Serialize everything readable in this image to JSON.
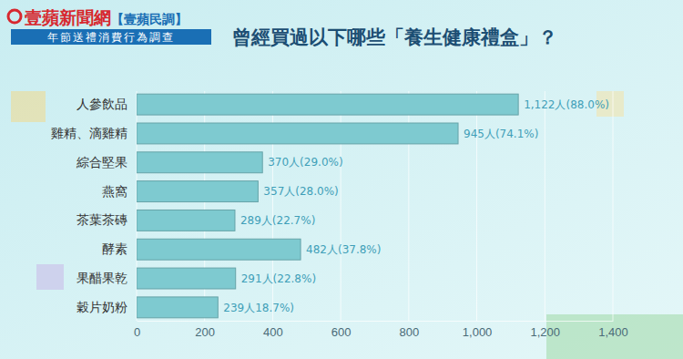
{
  "chart_data": {
    "type": "bar",
    "orientation": "horizontal",
    "title": "曾經買過以下哪些「養生健康禮盒」？",
    "subtitle": "年節送禮消費行為調查",
    "annotations": [
      "壹蘋新聞網",
      "【壹蘋民調】"
    ],
    "categories": [
      "人參飲品",
      "雞精、滴雞精",
      "綜合堅果",
      "燕窩",
      "茶葉茶磚",
      "酵素",
      "果醋果乾",
      "穀片奶粉"
    ],
    "values": [
      1122,
      945,
      370,
      357,
      289,
      482,
      291,
      239
    ],
    "value_labels": [
      "1,122人(88.0%)",
      "945人(74.1%)",
      "370人(29.0%)",
      "357人(28.0%)",
      "289人(22.7%)",
      "482人(37.8%)",
      "291人(22.8%)",
      "239人18.7%)"
    ],
    "color": "#7ecad0",
    "xlim": [
      0,
      1400
    ],
    "xticks": [
      0,
      200,
      400,
      600,
      800,
      {
        "value": 1000,
        "label": "1,000"
      },
      {
        "value": 1200,
        "label": "1,200"
      },
      {
        "value": 1400,
        "label": "1,400"
      }
    ],
    "grid": true,
    "data_labels": true
  }
}
